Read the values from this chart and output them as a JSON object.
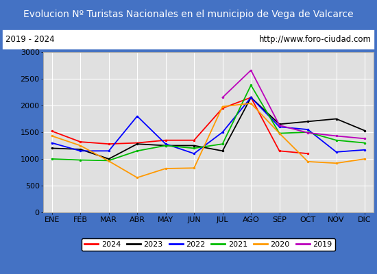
{
  "title": "Evolucion Nº Turistas Nacionales en el municipio de Vega de Valcarce",
  "subtitle_left": "2019 - 2024",
  "subtitle_right": "http://www.foro-ciudad.com",
  "months": [
    "ENE",
    "FEB",
    "MAR",
    "ABR",
    "MAY",
    "JUN",
    "JUL",
    "AGO",
    "SEP",
    "OCT",
    "NOV",
    "DIC"
  ],
  "series": {
    "2024": [
      1520,
      1320,
      1280,
      1300,
      1350,
      1350,
      1950,
      2150,
      1150,
      1100,
      null,
      null
    ],
    "2023": [
      1200,
      1180,
      1000,
      1280,
      1250,
      1250,
      1150,
      2150,
      1650,
      1700,
      1750,
      1530
    ],
    "2022": [
      1300,
      1150,
      1150,
      1800,
      1280,
      1100,
      1500,
      2150,
      1600,
      1550,
      1130,
      1170
    ],
    "2021": [
      1000,
      980,
      970,
      1150,
      1250,
      1200,
      1280,
      2380,
      1480,
      1500,
      1350,
      1300
    ],
    "2020": [
      1430,
      1250,
      960,
      650,
      820,
      830,
      1980,
      2040,
      1480,
      950,
      920,
      1000
    ],
    "2019": [
      null,
      null,
      null,
      null,
      null,
      null,
      2150,
      2660,
      1630,
      1490,
      1430,
      1380
    ]
  },
  "colors": {
    "2024": "#ff0000",
    "2023": "#000000",
    "2022": "#0000ff",
    "2021": "#00bb00",
    "2020": "#ff9900",
    "2019": "#bb00bb"
  },
  "ylim": [
    0,
    3000
  ],
  "yticks": [
    0,
    500,
    1000,
    1500,
    2000,
    2500,
    3000
  ],
  "title_bg_color": "#4472c4",
  "title_font_color": "#ffffff",
  "plot_bg_color": "#e0e0e0",
  "grid_color": "#ffffff",
  "border_color": "#4472c4",
  "legend_font_size": 8,
  "title_font_size": 10,
  "axis_font_size": 8
}
